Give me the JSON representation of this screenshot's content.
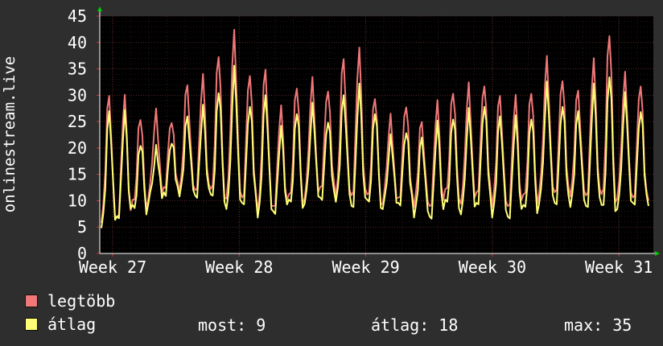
{
  "chart_data": {
    "type": "line",
    "ylabel": "onlinestream.live",
    "ylim": [
      0,
      45
    ],
    "y_ticks": [
      "0",
      "5",
      "10",
      "15",
      "20",
      "25",
      "30",
      "35",
      "40",
      "45"
    ],
    "x_tick_labels": [
      "Week 27",
      "Week 28",
      "Week 29",
      "Week 30",
      "Week 31"
    ],
    "grid": true,
    "colors": {
      "background": "#000000",
      "grid": "#5a2a2a",
      "axis": "#ffffff",
      "arrow": "#00cc00",
      "max_series": "#f07878",
      "avg_series": "#ffff77"
    },
    "series": [
      {
        "name": "legtöbb",
        "color": "#f07878",
        "daily_peaks": [
          30,
          29,
          26,
          27,
          26,
          32,
          33,
          38,
          42,
          35,
          35,
          27,
          32,
          33,
          32,
          37,
          38,
          30,
          26,
          29,
          25,
          28,
          31,
          32,
          33,
          30,
          29,
          31,
          37,
          34,
          31,
          36,
          42,
          34,
          33
        ],
        "daily_lows": [
          7,
          7,
          9,
          11,
          12,
          13,
          12,
          11,
          11,
          10,
          9,
          9,
          10,
          11,
          12,
          12,
          11,
          10,
          10,
          10,
          10,
          9,
          11,
          10,
          11,
          10,
          9,
          10,
          12,
          11,
          12,
          11,
          10,
          11,
          10
        ],
        "last": 10
      },
      {
        "name": "átlag",
        "color": "#ffff77",
        "daily_peaks": [
          27,
          26,
          21,
          20,
          22,
          26,
          27,
          31,
          35,
          29,
          30,
          23,
          27,
          28,
          26,
          30,
          31,
          27,
          22,
          24,
          22,
          24,
          26,
          27,
          29,
          26,
          25,
          26,
          32,
          29,
          27,
          31,
          34,
          30,
          28
        ],
        "daily_lows": [
          6,
          7,
          8,
          10,
          11,
          12,
          11,
          10,
          9,
          9,
          8,
          8,
          9,
          10,
          10,
          11,
          9,
          9,
          9,
          9,
          8,
          7,
          9,
          8,
          9,
          8,
          7,
          8,
          10,
          9,
          10,
          9,
          8,
          9,
          9
        ],
        "last": 9
      }
    ]
  },
  "legend": {
    "max_label": "legtöbb",
    "avg_label": "átlag"
  },
  "stats": {
    "now": "most: 9",
    "avg": "átlag: 18",
    "max": "max: 35"
  }
}
